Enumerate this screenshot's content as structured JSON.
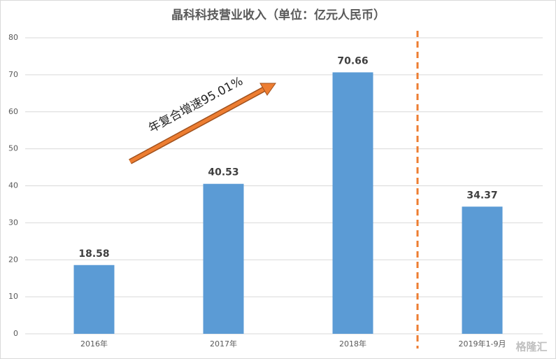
{
  "chart_data": {
    "type": "bar",
    "title": "晶科科技营业收入（单位：亿元人民币）",
    "categories": [
      "2016年",
      "2017年",
      "2018年",
      "2019年1-9月"
    ],
    "values": [
      18.58,
      40.53,
      70.66,
      34.37
    ],
    "color": "#5b9bd5",
    "ylim": [
      0,
      80
    ],
    "yticks": [
      0,
      10,
      20,
      30,
      40,
      50,
      60,
      70,
      80
    ],
    "grid": true,
    "annotation": "年复合增速95.01%",
    "watermark": "格隆汇"
  }
}
